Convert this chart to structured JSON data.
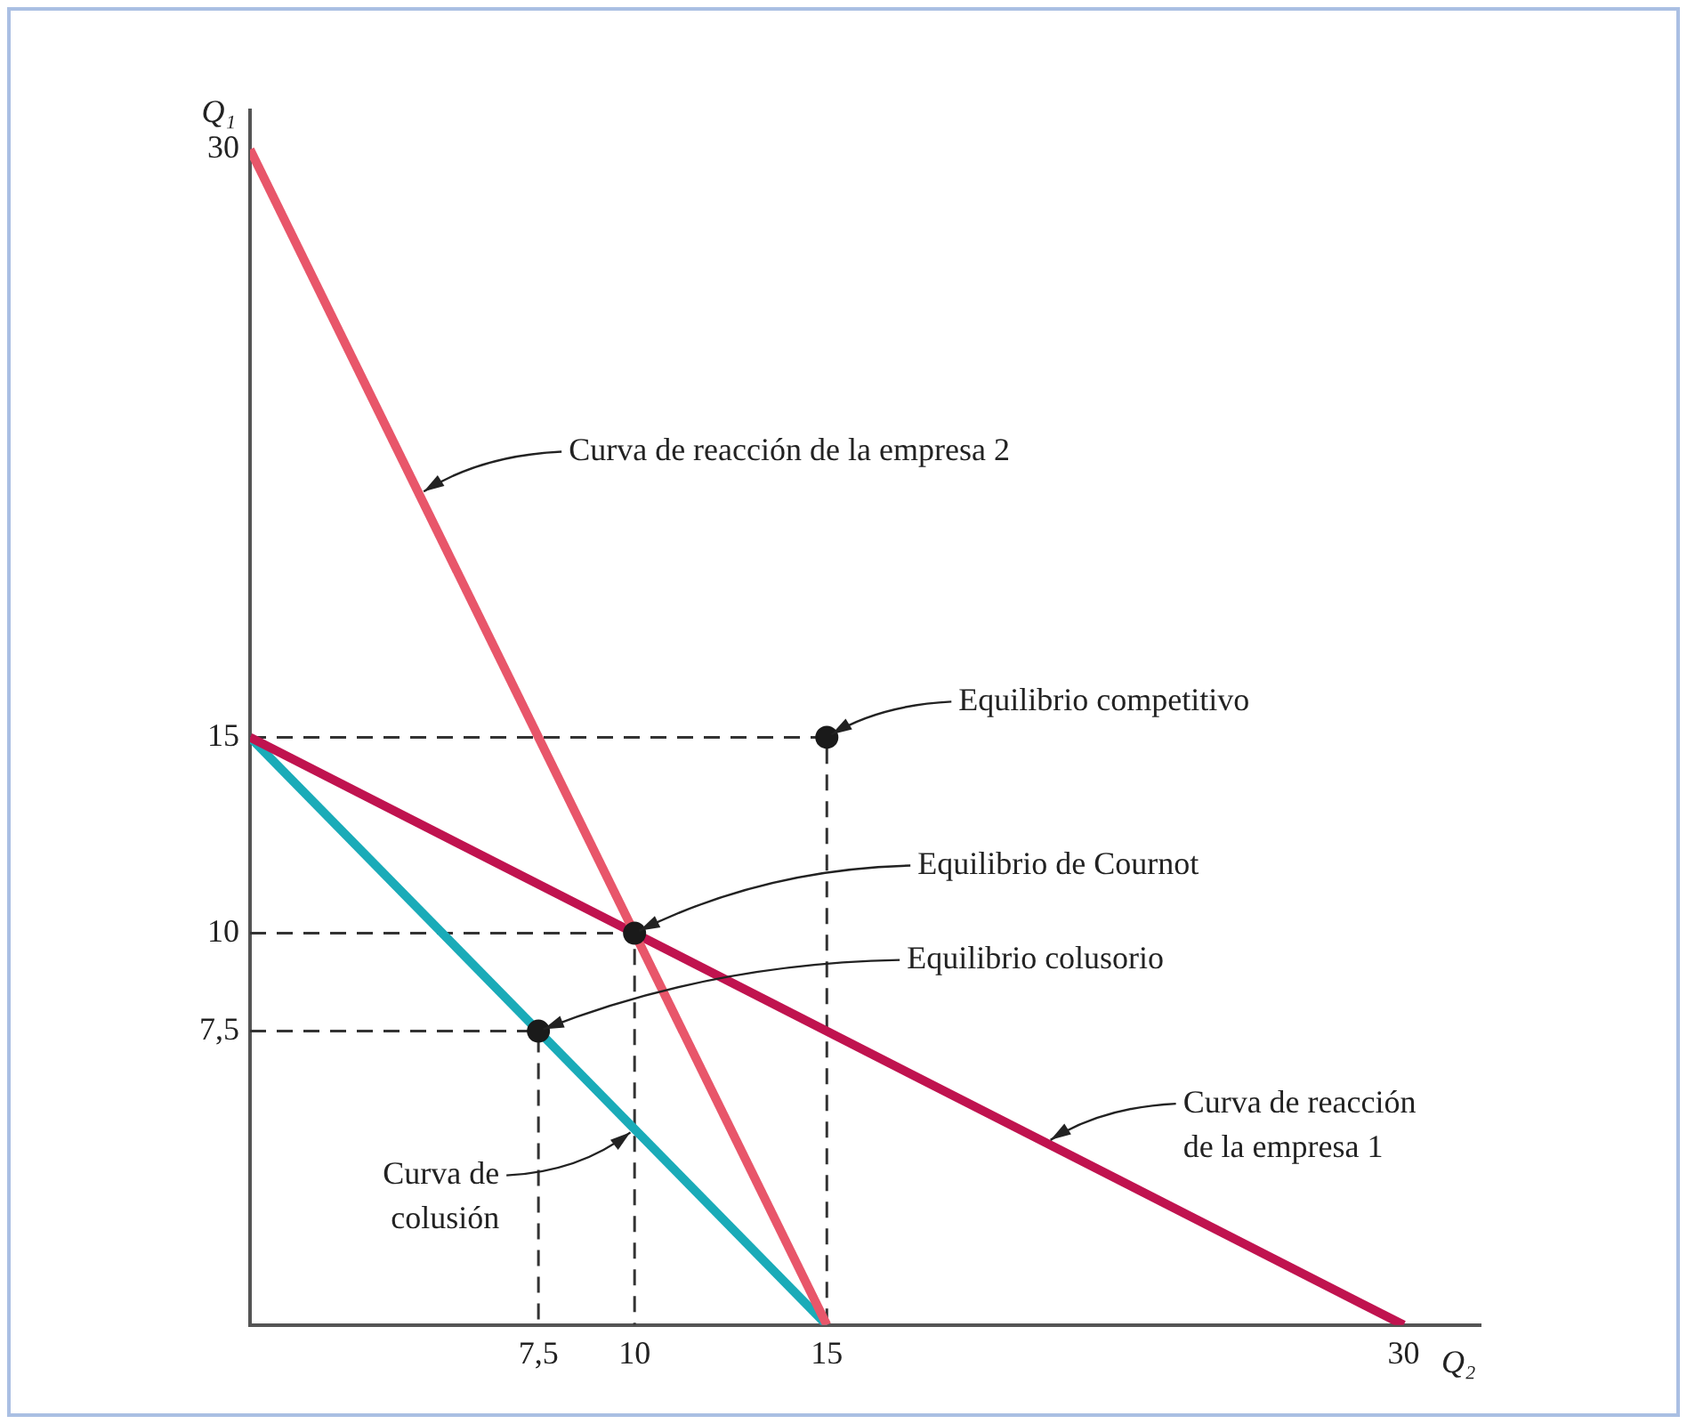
{
  "chart_data": {
    "type": "line",
    "xlabel": "Q₂",
    "ylabel": "Q₁",
    "xlim": [
      0,
      32
    ],
    "ylim": [
      0,
      31
    ],
    "xticks": [
      {
        "value": 7.5,
        "label": "7,5"
      },
      10,
      15,
      30
    ],
    "yticks": [
      {
        "value": 7.5,
        "label": "7,5"
      },
      10,
      15,
      30
    ],
    "grid": false,
    "legend": false,
    "series": [
      {
        "type": "line",
        "color": "#333333",
        "line_style": "dashed",
        "marker": "none",
        "x": [
          0,
          15,
          15
        ],
        "values": [
          15,
          15,
          0
        ]
      },
      {
        "type": "line",
        "color": "#333333",
        "line_style": "dashed",
        "marker": "none",
        "x": [
          0,
          10,
          10
        ],
        "values": [
          10,
          10,
          0
        ]
      },
      {
        "type": "line",
        "color": "#333333",
        "line_style": "dashed",
        "marker": "none",
        "x": [
          0,
          7.5,
          7.5
        ],
        "values": [
          7.5,
          7.5,
          0
        ]
      },
      {
        "type": "line",
        "color": "#1aabb8",
        "line_style": "solid",
        "marker": "none",
        "x": [
          0,
          15
        ],
        "values": [
          15,
          0
        ]
      },
      {
        "type": "line",
        "color": "#c0134f",
        "line_style": "solid",
        "marker": "none",
        "x": [
          0,
          30
        ],
        "values": [
          15,
          0
        ]
      },
      {
        "type": "line",
        "color": "#e8566a",
        "line_style": "solid",
        "marker": "none",
        "x": [
          0,
          15
        ],
        "values": [
          30,
          0
        ]
      },
      {
        "type": "scatter",
        "color": "#1a1a1a",
        "marker": "circle",
        "x": [
          15,
          10,
          7.5
        ],
        "values": [
          15,
          10,
          7.5
        ]
      }
    ],
    "annotations": [
      {
        "text": "Curva de reacción de la empresa 2",
        "x": 4.4,
        "y": 21.2
      },
      {
        "text": "Equilibrio competitivo",
        "x": 15,
        "y": 15
      },
      {
        "text": "Equilibrio de Cournot",
        "x": 10,
        "y": 10
      },
      {
        "text": "Equilibrio colusorio",
        "x": 7.5,
        "y": 7.5
      },
      {
        "text": "Curva de reacción\nde la empresa 1",
        "x": 20.7,
        "y": 4.65
      },
      {
        "text": "Curva de\ncolusión",
        "x": 10,
        "y": 5
      }
    ]
  }
}
